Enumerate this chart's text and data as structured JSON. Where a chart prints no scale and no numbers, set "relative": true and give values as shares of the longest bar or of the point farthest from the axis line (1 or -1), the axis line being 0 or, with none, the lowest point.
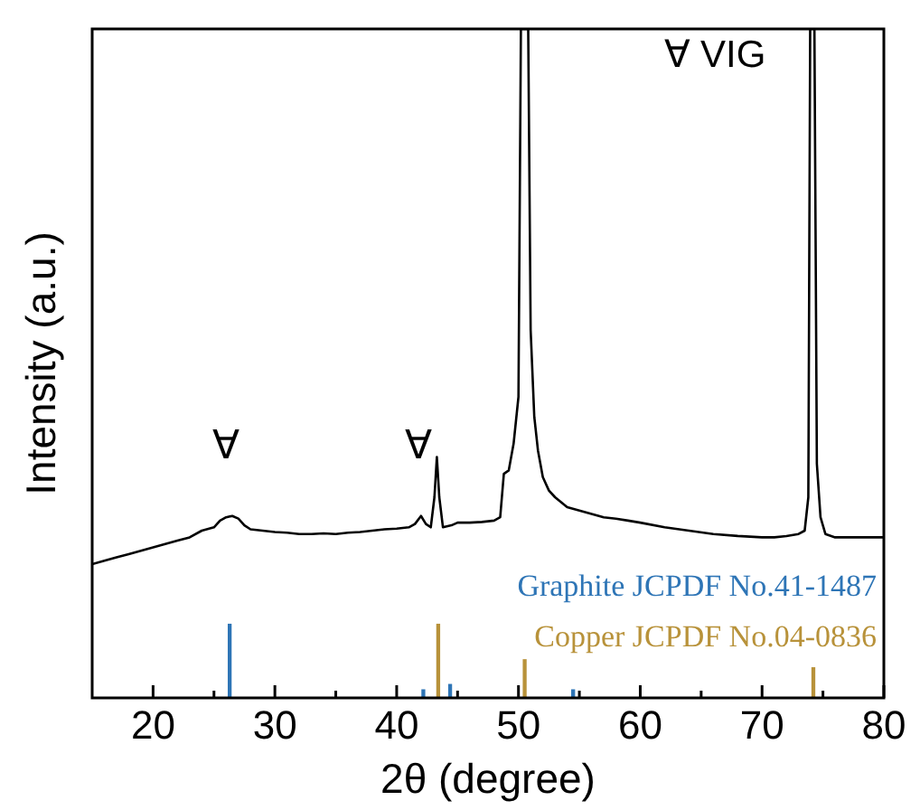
{
  "chart_data": {
    "type": "line",
    "xlabel": "2θ (degree)",
    "ylabel": "Intensity (a.u.)",
    "relative": true,
    "xlim": [
      15,
      80
    ],
    "xticks": [
      20,
      {
        "value": 25,
        "label": null
      },
      30,
      {
        "value": 35,
        "label": null
      },
      40,
      {
        "value": 45,
        "label": null
      },
      50,
      {
        "value": 55,
        "label": null
      },
      60,
      {
        "value": 65,
        "label": null
      },
      70,
      {
        "value": 75,
        "label": null
      },
      80
    ],
    "grid": false,
    "legend": false,
    "marker": "none",
    "series": [
      {
        "color": "#000000",
        "x": [
          15,
          16,
          17,
          18,
          19,
          20,
          21,
          22,
          23,
          24,
          25,
          25.5,
          26,
          26.5,
          27,
          27.5,
          28,
          29,
          30,
          31,
          32,
          33,
          34,
          35,
          36,
          37,
          38,
          39,
          40,
          41,
          41.5,
          42,
          42.4,
          42.8,
          43.1,
          43.3,
          43.5,
          43.8,
          44.5,
          45,
          46,
          47,
          48,
          48.5,
          48.8,
          49.2,
          49.6,
          50,
          50.2,
          50.8,
          51,
          51.3,
          51.6,
          52,
          52.5,
          53,
          54,
          55,
          56,
          57,
          58,
          59,
          60,
          62,
          64,
          66,
          68,
          70,
          71,
          72,
          73,
          73.5,
          73.8,
          73.95,
          74.3,
          74.5,
          74.8,
          75.2,
          76,
          77,
          78,
          79,
          80
        ],
        "values": [
          0.2,
          0.205,
          0.21,
          0.215,
          0.22,
          0.225,
          0.23,
          0.235,
          0.24,
          0.25,
          0.255,
          0.265,
          0.27,
          0.272,
          0.268,
          0.258,
          0.252,
          0.25,
          0.248,
          0.247,
          0.245,
          0.245,
          0.246,
          0.245,
          0.247,
          0.248,
          0.25,
          0.252,
          0.253,
          0.255,
          0.26,
          0.272,
          0.26,
          0.255,
          0.3,
          0.36,
          0.3,
          0.255,
          0.258,
          0.262,
          0.262,
          0.263,
          0.265,
          0.27,
          0.335,
          0.34,
          0.38,
          0.45,
          1,
          1,
          0.55,
          0.42,
          0.37,
          0.33,
          0.31,
          0.3,
          0.285,
          0.28,
          0.275,
          0.27,
          0.268,
          0.265,
          0.262,
          0.255,
          0.25,
          0.245,
          0.242,
          0.24,
          0.24,
          0.242,
          0.245,
          0.25,
          0.3,
          1,
          1,
          0.35,
          0.27,
          0.245,
          0.24,
          0.24,
          0.24,
          0.24,
          0.24
        ]
      },
      {
        "type": "bar",
        "name": "Graphite JCPDF No.41-1487",
        "color": "#2e75b6",
        "x": [
          26.4,
          42.3,
          44.5,
          54.6
        ],
        "values": [
          0.11,
          0.012,
          0.02,
          0.012
        ]
      },
      {
        "type": "bar",
        "name": "Copper JCPDF No.04-0836",
        "color": "#b8923a",
        "x": [
          43.3,
          50.4,
          74.1
        ],
        "values": [
          0.11,
          0.057,
          0.045
        ]
      }
    ],
    "annotations": [
      "∀",
      "∀",
      "∀ VIG"
    ]
  }
}
